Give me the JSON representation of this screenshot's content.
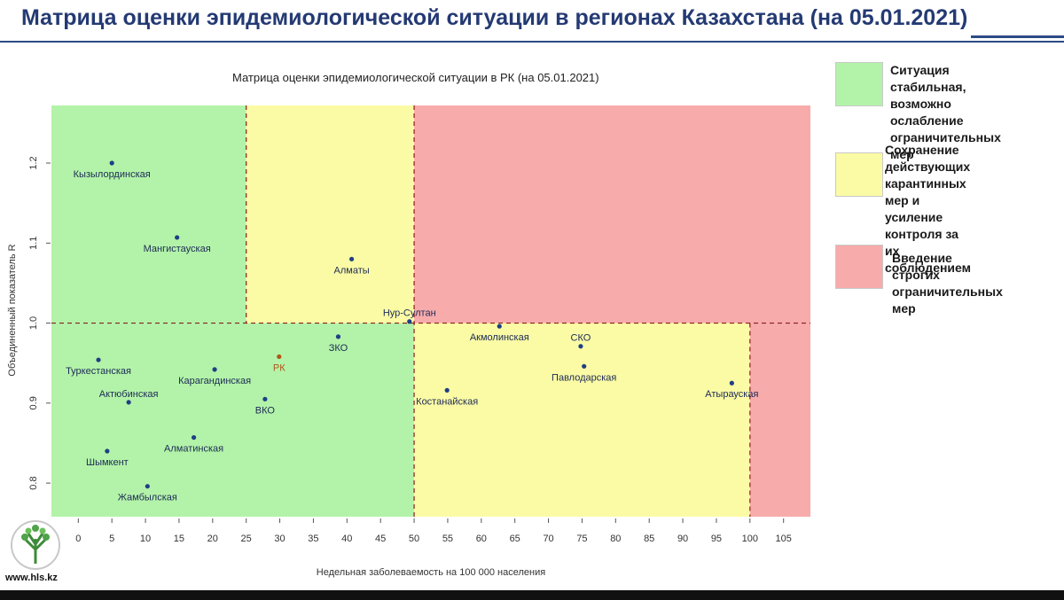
{
  "header": {
    "title": "Матрица оценки эпидемиологической ситуации в регионах Казахстана (на 05.01.2021)"
  },
  "chart_data": {
    "type": "scatter",
    "title": "Матрица оценки эпидемиологической ситуации в РК (на 05.01.2021)",
    "xlabel": "Недельная заболеваемость на 100 000 населения",
    "ylabel": "Объединенный показатель R",
    "xlim": [
      -4,
      109
    ],
    "ylim": [
      0.758,
      1.272
    ],
    "xticks": [
      0,
      5,
      10,
      15,
      20,
      25,
      30,
      35,
      40,
      45,
      50,
      55,
      60,
      65,
      70,
      75,
      80,
      85,
      90,
      95,
      100,
      105
    ],
    "yticks": [
      0.8,
      0.9,
      1.0,
      1.1,
      1.2
    ],
    "thresholds": {
      "x": [
        25,
        50,
        100
      ],
      "y": 1.0
    },
    "zones": [
      {
        "zone": "green",
        "x": [
          -4,
          25
        ],
        "y": [
          1.0,
          1.272
        ]
      },
      {
        "zone": "yellow",
        "x": [
          25,
          50
        ],
        "y": [
          1.0,
          1.272
        ]
      },
      {
        "zone": "red",
        "x": [
          50,
          109
        ],
        "y": [
          1.0,
          1.272
        ]
      },
      {
        "zone": "green",
        "x": [
          -4,
          50
        ],
        "y": [
          0.758,
          1.0
        ]
      },
      {
        "zone": "yellow",
        "x": [
          50,
          100
        ],
        "y": [
          0.758,
          1.0
        ]
      },
      {
        "zone": "red",
        "x": [
          100,
          109
        ],
        "y": [
          0.758,
          1.0
        ]
      }
    ],
    "zone_colors": {
      "green": "#b3f3a9",
      "yellow": "#fbfba5",
      "red": "#f7abab"
    },
    "points": [
      {
        "label": "Кызылординская",
        "x": 5,
        "y": 1.2,
        "color": "#1f3f86",
        "label_pos": "below"
      },
      {
        "label": "Мангистауская",
        "x": 14.7,
        "y": 1.107,
        "color": "#1f3f86",
        "label_pos": "below"
      },
      {
        "label": "Алматы",
        "x": 40.7,
        "y": 1.08,
        "color": "#1f3f86",
        "label_pos": "below"
      },
      {
        "label": "Нур-Султан",
        "x": 49.3,
        "y": 1.002,
        "color": "#1f3f86",
        "label_pos": "above"
      },
      {
        "label": "Акмолинская",
        "x": 62.7,
        "y": 0.996,
        "color": "#1f3f86",
        "label_pos": "below"
      },
      {
        "label": "СКО",
        "x": 74.8,
        "y": 0.971,
        "color": "#1f3f86",
        "label_pos": "above"
      },
      {
        "label": "Павлодарская",
        "x": 75.3,
        "y": 0.946,
        "color": "#1f3f86",
        "label_pos": "below"
      },
      {
        "label": "Атырауская",
        "x": 97.3,
        "y": 0.925,
        "color": "#1f3f86",
        "label_pos": "below"
      },
      {
        "label": "Костанайская",
        "x": 54.9,
        "y": 0.916,
        "color": "#1f3f86",
        "label_pos": "below"
      },
      {
        "label": "ЗКО",
        "x": 38.7,
        "y": 0.983,
        "color": "#1f3f86",
        "label_pos": "below"
      },
      {
        "label": "РК",
        "x": 29.9,
        "y": 0.958,
        "color": "#b0541a",
        "label_pos": "below"
      },
      {
        "label": "Туркестанская",
        "x": 3.0,
        "y": 0.954,
        "color": "#1f3f86",
        "label_pos": "below"
      },
      {
        "label": "Карагандинская",
        "x": 20.3,
        "y": 0.942,
        "color": "#1f3f86",
        "label_pos": "below"
      },
      {
        "label": "Актюбинская",
        "x": 7.5,
        "y": 0.901,
        "color": "#1f3f86",
        "label_pos": "above"
      },
      {
        "label": "ВКО",
        "x": 27.8,
        "y": 0.905,
        "color": "#1f3f86",
        "label_pos": "below"
      },
      {
        "label": "Алматинская",
        "x": 17.2,
        "y": 0.857,
        "color": "#1f3f86",
        "label_pos": "below"
      },
      {
        "label": "Шымкент",
        "x": 4.3,
        "y": 0.84,
        "color": "#1f3f86",
        "label_pos": "below"
      },
      {
        "label": "Жамбылская",
        "x": 10.3,
        "y": 0.796,
        "color": "#1f3f86",
        "label_pos": "below"
      }
    ]
  },
  "legend": {
    "items": [
      {
        "color": "#b3f3a9",
        "text": "Ситуация стабильная,\nвозможно ослабление\nограничительных мер"
      },
      {
        "color": "#fbfba5",
        "text": "Сохранение действующих\nкарантинных мер и\nусиление контроля за их\nсоблюдением"
      },
      {
        "color": "#f7abab",
        "text": "Введение строгих\nограничительных мер"
      }
    ]
  },
  "footer": {
    "url": "www.hls.kz"
  }
}
